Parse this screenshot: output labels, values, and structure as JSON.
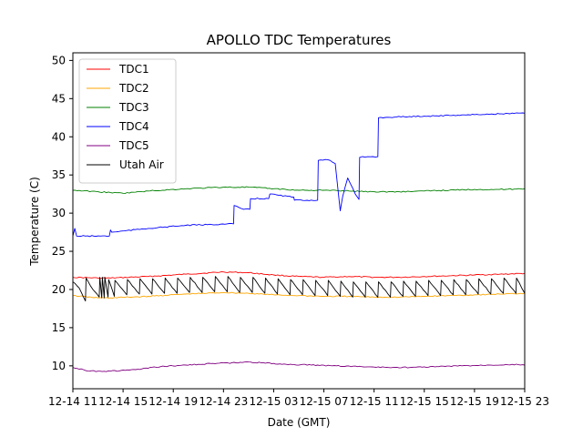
{
  "chart_data": {
    "type": "line",
    "title": "APOLLO TDC Temperatures",
    "xlabel": "Date (GMT)",
    "ylabel": "Temperature (C)",
    "xlim": [
      0,
      36
    ],
    "ylim": [
      7,
      51
    ],
    "x_units": "hours since 12-14 11:00 GMT",
    "x_ticks": [
      {
        "x": 0,
        "label": "12-14 11"
      },
      {
        "x": 4,
        "label": "12-14 15"
      },
      {
        "x": 8,
        "label": "12-14 19"
      },
      {
        "x": 12,
        "label": "12-14 23"
      },
      {
        "x": 16,
        "label": "12-15 03"
      },
      {
        "x": 20,
        "label": "12-15 07"
      },
      {
        "x": 24,
        "label": "12-15 11"
      },
      {
        "x": 28,
        "label": "12-15 15"
      },
      {
        "x": 32,
        "label": "12-15 19"
      },
      {
        "x": 36,
        "label": "12-15 23"
      }
    ],
    "y_ticks": [
      10,
      15,
      20,
      25,
      30,
      35,
      40,
      45,
      50
    ],
    "legend_location": "upper-left",
    "series": [
      {
        "name": "TDC1",
        "color": "#ff0000",
        "x": [
          0,
          2,
          3,
          6,
          9,
          12,
          14,
          16,
          18,
          20,
          22,
          24,
          26,
          28,
          30,
          32,
          34,
          36
        ],
        "y": [
          21.6,
          21.5,
          21.5,
          21.7,
          22.0,
          22.3,
          22.2,
          21.9,
          21.7,
          21.6,
          21.7,
          21.6,
          21.6,
          21.7,
          21.8,
          21.9,
          22.0,
          22.1
        ]
      },
      {
        "name": "TDC2",
        "color": "#ffa500",
        "x": [
          0,
          2,
          3,
          6,
          9,
          12,
          14,
          16,
          18,
          20,
          22,
          24,
          26,
          28,
          30,
          32,
          34,
          36
        ],
        "y": [
          19.2,
          18.9,
          18.9,
          19.1,
          19.4,
          19.6,
          19.5,
          19.3,
          19.2,
          19.1,
          19.1,
          19.0,
          19.0,
          19.1,
          19.2,
          19.3,
          19.4,
          19.5
        ]
      },
      {
        "name": "TDC3",
        "color": "#008000",
        "x": [
          0,
          2,
          4,
          6,
          9,
          12,
          14,
          16,
          18,
          20,
          22,
          24,
          26,
          28,
          30,
          32,
          34,
          36
        ],
        "y": [
          33.0,
          32.8,
          32.6,
          32.9,
          33.2,
          33.4,
          33.4,
          33.2,
          33.0,
          33.0,
          32.9,
          32.8,
          32.8,
          32.9,
          33.0,
          33.1,
          33.1,
          33.2
        ]
      },
      {
        "name": "TDC4",
        "color": "#0000ff",
        "x": [
          0,
          0.15,
          0.3,
          1,
          2.9,
          3.0,
          3.1,
          6,
          9,
          12.8,
          12.85,
          13.6,
          14.1,
          14.15,
          15.6,
          15.7,
          17.6,
          17.65,
          19.5,
          19.55,
          20.3,
          20.5,
          20.9,
          21.3,
          21.5,
          21.9,
          22.5,
          22.8,
          22.85,
          23.5,
          24.3,
          24.35,
          25.8,
          28,
          32,
          34,
          36
        ],
        "y": [
          27.0,
          28.0,
          27.0,
          27.0,
          27.0,
          27.8,
          27.5,
          28.0,
          28.4,
          28.6,
          31.0,
          30.5,
          30.5,
          31.9,
          31.9,
          32.5,
          32.1,
          31.7,
          31.7,
          36.9,
          37.0,
          36.9,
          36.5,
          30.3,
          32.2,
          34.6,
          32.5,
          31.8,
          37.3,
          37.4,
          37.4,
          42.5,
          42.6,
          42.7,
          42.9,
          43.0,
          43.1
        ]
      },
      {
        "name": "TDC5",
        "color": "#800080",
        "x": [
          0,
          1,
          2,
          3,
          5,
          7,
          9,
          11,
          13,
          14,
          15,
          17,
          19,
          21,
          23,
          25,
          27,
          29,
          31,
          33,
          35,
          36
        ],
        "y": [
          9.8,
          9.4,
          9.3,
          9.3,
          9.5,
          9.9,
          10.1,
          10.3,
          10.4,
          10.5,
          10.4,
          10.2,
          10.1,
          10.0,
          9.9,
          9.8,
          9.8,
          9.9,
          10.0,
          10.1,
          10.2,
          10.1
        ]
      },
      {
        "name": "Utah Air",
        "color": "#000000",
        "x": [
          0.0,
          0.5,
          1.0,
          1.05,
          1.6,
          2.1,
          2.15,
          2.3,
          2.35,
          2.5,
          2.55,
          2.8,
          2.85,
          3.3,
          3.35,
          4.3,
          4.35,
          5.3,
          5.35,
          6.3,
          6.35,
          7.3,
          7.35,
          8.3,
          8.35,
          9.3,
          9.35,
          10.3,
          10.35,
          11.3,
          11.35,
          12.3,
          12.35,
          13.3,
          13.35,
          14.3,
          14.35,
          15.3,
          15.35,
          16.3,
          16.35,
          17.3,
          17.35,
          18.3,
          18.35,
          19.3,
          19.35,
          20.3,
          20.35,
          21.3,
          21.35,
          22.3,
          22.35,
          23.3,
          23.35,
          24.3,
          24.35,
          25.3,
          25.35,
          26.3,
          26.35,
          27.3,
          27.35,
          28.3,
          28.35,
          29.3,
          29.35,
          30.3,
          30.35,
          31.3,
          31.35,
          32.3,
          32.35,
          33.3,
          33.35,
          34.3,
          34.35,
          35.3,
          35.35,
          36.0
        ],
        "y": [
          21.0,
          20.2,
          18.5,
          21.5,
          20.0,
          19.0,
          21.6,
          18.9,
          21.6,
          18.9,
          21.6,
          19.0,
          21.3,
          19.1,
          21.2,
          19.3,
          21.3,
          19.4,
          21.4,
          19.4,
          21.4,
          19.5,
          21.5,
          19.5,
          21.5,
          19.6,
          21.6,
          19.6,
          21.6,
          19.7,
          21.7,
          19.7,
          21.7,
          19.6,
          21.6,
          19.6,
          21.6,
          19.5,
          21.5,
          19.4,
          21.4,
          19.3,
          21.3,
          19.3,
          21.3,
          19.2,
          21.2,
          19.2,
          21.2,
          19.1,
          21.1,
          19.0,
          21.0,
          19.0,
          21.0,
          19.0,
          21.0,
          19.0,
          21.0,
          19.1,
          21.1,
          19.1,
          21.1,
          19.2,
          21.2,
          19.2,
          21.2,
          19.3,
          21.3,
          19.3,
          21.3,
          19.4,
          21.4,
          19.4,
          21.4,
          19.5,
          21.5,
          19.5,
          21.5,
          19.5
        ]
      }
    ]
  }
}
